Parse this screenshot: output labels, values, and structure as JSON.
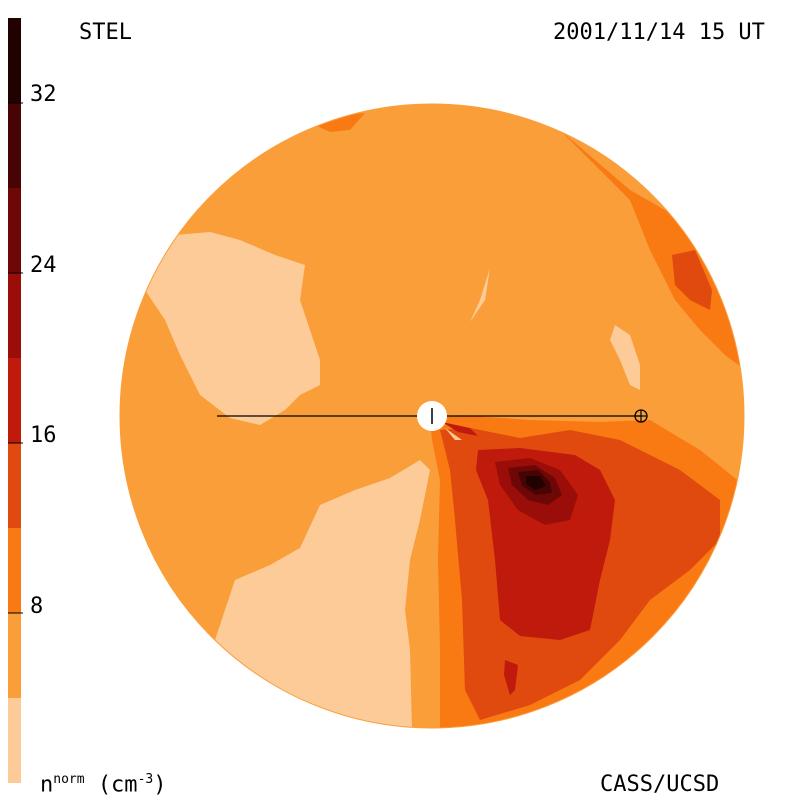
{
  "chart_data": {
    "type": "heatmap",
    "title_left": "STEL",
    "title_right": "2001/11/14 15 UT",
    "credit": "CASS/UCSD",
    "colorbar": {
      "label_main": "n",
      "label_sup": "norm",
      "label_unit": "(cm",
      "label_unit_sup": "-3",
      "label_close": ")",
      "ticks": [
        "32",
        "24",
        "16",
        "8"
      ],
      "tick_values": [
        32,
        24,
        16,
        8
      ],
      "range": [
        0,
        36
      ],
      "levels": [
        {
          "min": 0,
          "max": 4,
          "color": "#fccb98"
        },
        {
          "min": 4,
          "max": 8,
          "color": "#fa9e3a"
        },
        {
          "min": 8,
          "max": 12,
          "color": "#f97912"
        },
        {
          "min": 12,
          "max": 16,
          "color": "#e04a0e"
        },
        {
          "min": 16,
          "max": 20,
          "color": "#bf1a0c"
        },
        {
          "min": 20,
          "max": 24,
          "color": "#9a0d08"
        },
        {
          "min": 24,
          "max": 28,
          "color": "#6e0806"
        },
        {
          "min": 28,
          "max": 32,
          "color": "#480404"
        },
        {
          "min": 32,
          "max": 36,
          "color": "#220101"
        }
      ]
    }
  }
}
